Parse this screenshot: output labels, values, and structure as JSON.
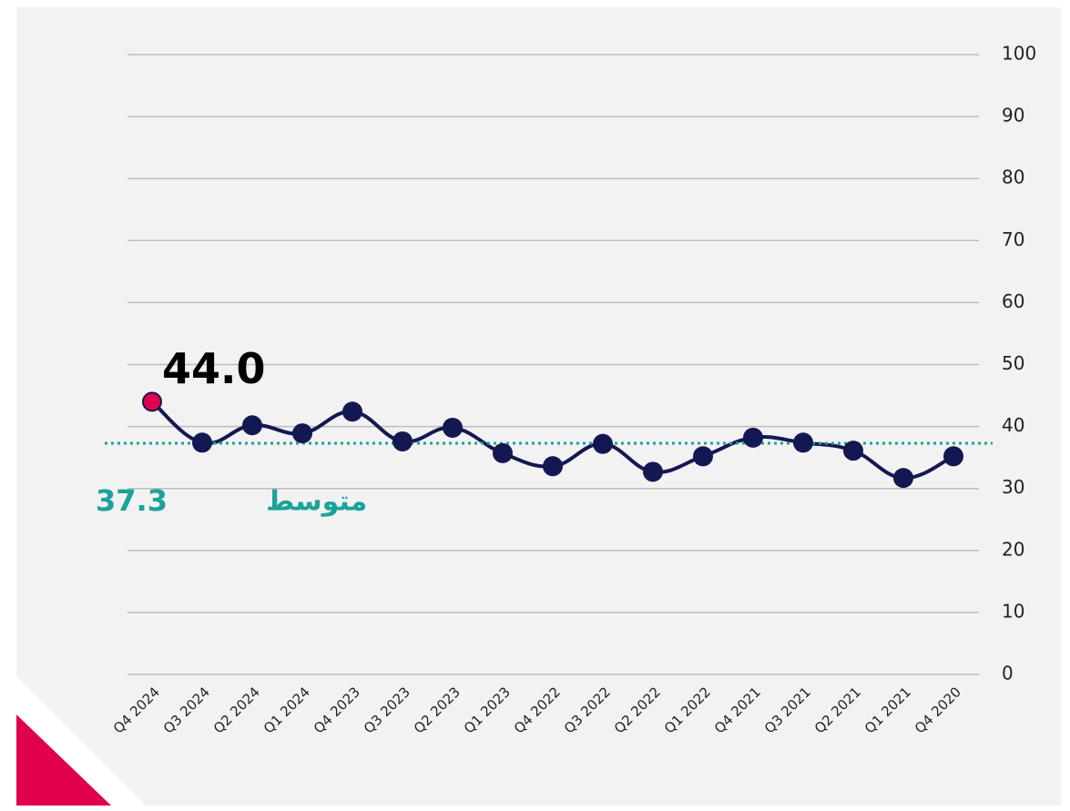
{
  "chart_data": {
    "type": "line",
    "categories": [
      "Q4 2024",
      "Q3 2024",
      "Q2 2024",
      "Q1 2024",
      "Q4 2023",
      "Q3 2023",
      "Q2 2023",
      "Q1 2023",
      "Q4 2022",
      "Q3 2022",
      "Q2 2022",
      "Q1 2022",
      "Q4 2021",
      "Q3 2021",
      "Q2 2021",
      "Q1 2021",
      "Q4 2020"
    ],
    "series": [
      {
        "color": "#141852",
        "highlight_color": "#e0004d",
        "values": [
          44.0,
          37.4,
          40.2,
          38.9,
          42.4,
          37.6,
          39.8,
          35.7,
          33.6,
          37.2,
          32.7,
          35.2,
          38.2,
          37.4,
          36.1,
          31.7,
          35.2
        ],
        "value_labels": [
          "44.0",
          null,
          null,
          null,
          null,
          null,
          null,
          null,
          null,
          null,
          null,
          null,
          null,
          null,
          null,
          null,
          null
        ]
      }
    ],
    "average": {
      "label": "متوسط",
      "value": 37.3,
      "color": "#1aa39a"
    },
    "ylim": [
      0,
      100
    ],
    "yticks": [
      0,
      10,
      20,
      30,
      40,
      50,
      60,
      70,
      80,
      90,
      100
    ],
    "grid": true
  }
}
